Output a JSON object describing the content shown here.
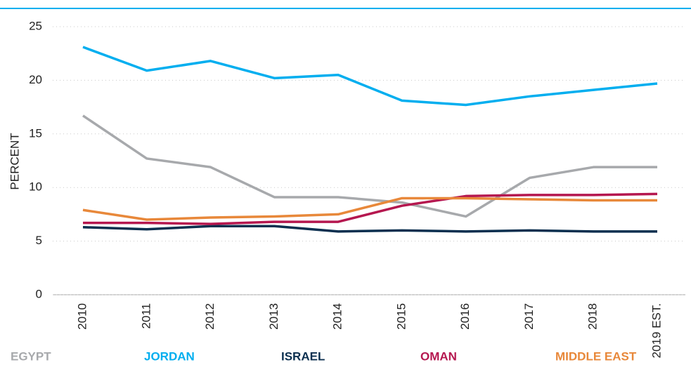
{
  "chart_data": {
    "type": "line",
    "y_label": "PERCENT",
    "categories": [
      "2010",
      "2011",
      "2012",
      "2013",
      "2014",
      "2015",
      "2016",
      "2017",
      "2018",
      "2019 EST."
    ],
    "series": [
      {
        "name": "EGYPT",
        "color": "#a7a9ac",
        "values": [
          16.7,
          12.7,
          11.9,
          9.1,
          9.1,
          8.6,
          7.3,
          10.9,
          11.9,
          11.9
        ]
      },
      {
        "name": "JORDAN",
        "color": "#00aeef",
        "values": [
          23.1,
          20.9,
          21.8,
          20.2,
          20.5,
          18.1,
          17.7,
          18.5,
          19.1,
          19.7
        ]
      },
      {
        "name": "ISRAEL",
        "color": "#0b2f4f",
        "values": [
          6.3,
          6.1,
          6.4,
          6.4,
          5.9,
          6.0,
          5.9,
          6.0,
          5.9,
          5.9
        ]
      },
      {
        "name": "OMAN",
        "color": "#b5174f",
        "values": [
          6.7,
          6.7,
          6.6,
          6.8,
          6.8,
          8.3,
          9.2,
          9.3,
          9.3,
          9.4
        ]
      },
      {
        "name": "MIDDLE EAST",
        "color": "#e8883a",
        "values": [
          7.9,
          7.0,
          7.2,
          7.3,
          7.5,
          9.0,
          9.0,
          8.9,
          8.8,
          8.8
        ]
      }
    ],
    "ylim": [
      0,
      25
    ],
    "yticks": [
      0,
      5,
      10,
      15,
      20,
      25
    ],
    "grid": true
  }
}
